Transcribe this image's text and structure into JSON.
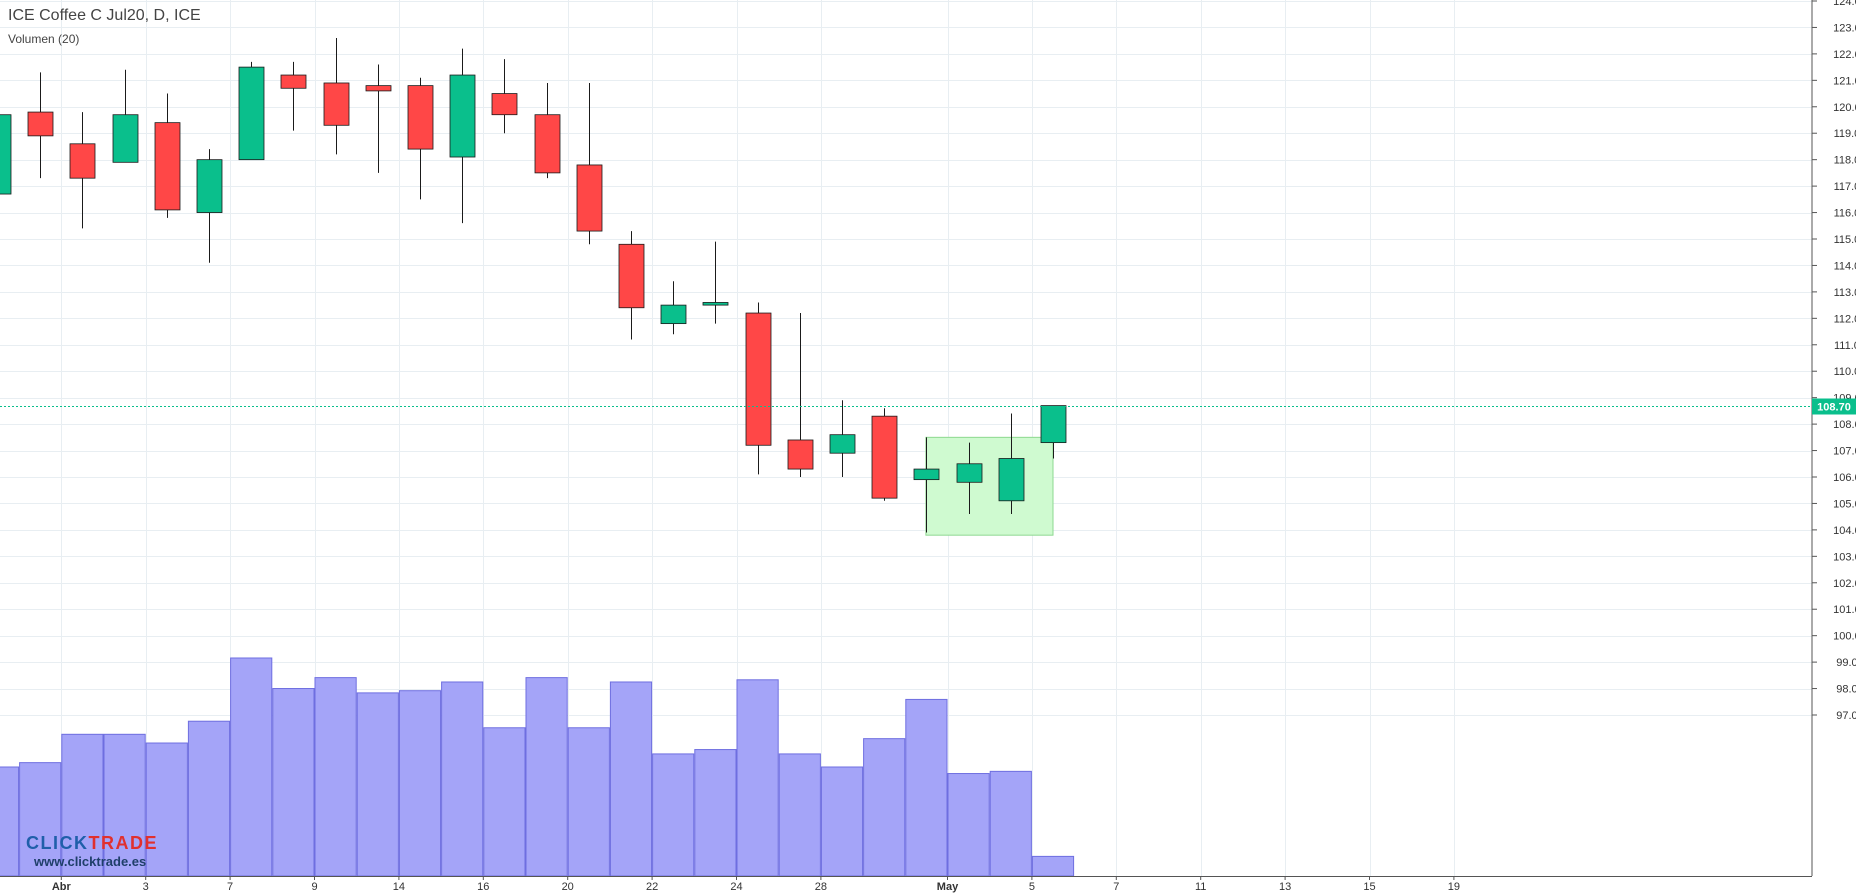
{
  "header": {
    "title": "ICE Coffee C Jul20, D, ICE",
    "volume_label": "Volumen (20)"
  },
  "watermark": {
    "brand_part1": "CLICK",
    "brand_part2": "TRADE",
    "url": "www.clicktrade.es"
  },
  "colors": {
    "up": "#0ABF8C",
    "down": "#FF4747",
    "volume": "#A4A4F8",
    "volume_edge": "#6E6EE0",
    "price_line": "#0ABF8C",
    "grid": "#E8EEF2",
    "box_fill": "#CFFAD0",
    "box_edge": "#8ED890",
    "brand_blue": "#1F5FAA",
    "brand_red": "#E0302E"
  },
  "chart_data": {
    "type": "candlestick",
    "title": "ICE Coffee C Jul20, D, ICE",
    "ylim": [
      96.3,
      124.5
    ],
    "yticks": [
      "124.00",
      "123.00",
      "122.00",
      "121.00",
      "120.00",
      "119.00",
      "118.00",
      "117.00",
      "116.00",
      "115.00",
      "114.00",
      "113.00",
      "112.00",
      "111.00",
      "110.00",
      "109.00",
      "108.00",
      "107.00",
      "106.00",
      "105.00",
      "104.00",
      "103.00",
      "102.00",
      "101.00",
      "100.00",
      "99.00",
      "98.00",
      "97.00"
    ],
    "xticks": [
      {
        "label": "Abr",
        "x": 1.5,
        "bold": true
      },
      {
        "label": "3",
        "x": 3.5,
        "bold": false
      },
      {
        "label": "7",
        "x": 5.5,
        "bold": false
      },
      {
        "label": "9",
        "x": 7.5,
        "bold": false
      },
      {
        "label": "14",
        "x": 9.5,
        "bold": false
      },
      {
        "label": "16",
        "x": 11.5,
        "bold": false
      },
      {
        "label": "20",
        "x": 13.5,
        "bold": false
      },
      {
        "label": "22",
        "x": 15.5,
        "bold": false
      },
      {
        "label": "24",
        "x": 17.5,
        "bold": false
      },
      {
        "label": "28",
        "x": 19.5,
        "bold": false
      },
      {
        "label": "May",
        "x": 22.5,
        "bold": true
      },
      {
        "label": "5",
        "x": 24.5,
        "bold": false
      },
      {
        "label": "7",
        "x": 26.5,
        "bold": false
      },
      {
        "label": "11",
        "x": 28.5,
        "bold": false
      },
      {
        "label": "13",
        "x": 30.5,
        "bold": false
      },
      {
        "label": "15",
        "x": 32.5,
        "bold": false
      },
      {
        "label": "19",
        "x": 34.5,
        "bold": false
      }
    ],
    "candles": [
      {
        "o": 116.7,
        "h": 119.7,
        "l": 116.6,
        "c": 119.7
      },
      {
        "o": 119.8,
        "h": 121.3,
        "l": 117.3,
        "c": 118.9
      },
      {
        "o": 118.6,
        "h": 119.8,
        "l": 115.4,
        "c": 117.3
      },
      {
        "o": 117.9,
        "h": 121.4,
        "l": 117.9,
        "c": 119.7
      },
      {
        "o": 119.4,
        "h": 120.5,
        "l": 115.8,
        "c": 116.1
      },
      {
        "o": 116.0,
        "h": 118.4,
        "l": 114.1,
        "c": 118.0
      },
      {
        "o": 118.0,
        "h": 121.7,
        "l": 118.0,
        "c": 121.5
      },
      {
        "o": 121.2,
        "h": 121.7,
        "l": 119.1,
        "c": 120.7
      },
      {
        "o": 120.9,
        "h": 122.6,
        "l": 118.2,
        "c": 119.3
      },
      {
        "o": 120.8,
        "h": 121.6,
        "l": 117.5,
        "c": 120.6
      },
      {
        "o": 120.8,
        "h": 121.1,
        "l": 116.5,
        "c": 118.4
      },
      {
        "o": 118.1,
        "h": 122.2,
        "l": 115.6,
        "c": 121.2
      },
      {
        "o": 120.5,
        "h": 121.8,
        "l": 119.0,
        "c": 119.7
      },
      {
        "o": 119.7,
        "h": 120.9,
        "l": 117.3,
        "c": 117.5
      },
      {
        "o": 117.8,
        "h": 120.9,
        "l": 114.8,
        "c": 115.3
      },
      {
        "o": 114.8,
        "h": 115.3,
        "l": 111.2,
        "c": 112.4
      },
      {
        "o": 111.8,
        "h": 113.4,
        "l": 111.4,
        "c": 112.5
      },
      {
        "o": 112.5,
        "h": 114.9,
        "l": 111.8,
        "c": 112.6
      },
      {
        "o": 112.2,
        "h": 112.6,
        "l": 106.1,
        "c": 107.2
      },
      {
        "o": 107.4,
        "h": 112.2,
        "l": 106.0,
        "c": 106.3
      },
      {
        "o": 106.9,
        "h": 108.9,
        "l": 106.0,
        "c": 107.6
      },
      {
        "o": 108.3,
        "h": 108.6,
        "l": 105.1,
        "c": 105.2
      },
      {
        "o": 105.9,
        "h": 107.5,
        "l": 103.9,
        "c": 106.3
      },
      {
        "o": 105.8,
        "h": 107.3,
        "l": 104.6,
        "c": 106.5
      },
      {
        "o": 105.1,
        "h": 108.4,
        "l": 104.6,
        "c": 106.7
      },
      {
        "o": 107.3,
        "h": 108.7,
        "l": 106.7,
        "c": 108.7
      }
    ],
    "volume_axis_max": 100,
    "volume": [
      50,
      52,
      65,
      65,
      61,
      71,
      100,
      86,
      91,
      84,
      85,
      89,
      68,
      91,
      68,
      89,
      56,
      58,
      90,
      56,
      50,
      63,
      81,
      47,
      48,
      9
    ],
    "last_price": "108.70",
    "last_price_value": 108.7,
    "highlight_box": {
      "x_start": 22.0,
      "x_end": 25.0,
      "y_top": 107.5,
      "y_bottom": 103.8
    }
  }
}
